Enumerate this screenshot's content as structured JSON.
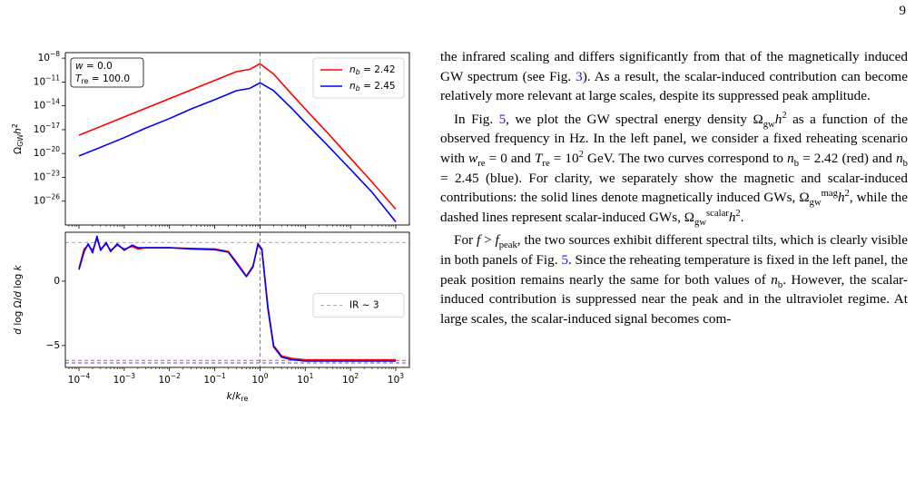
{
  "page_number": "9",
  "chart_data": [
    {
      "type": "line",
      "xlog": true,
      "ylog": true,
      "xlim": [
        5e-05,
        2000
      ],
      "ylim": [
        1e-29,
        5e-08
      ],
      "xticks": [
        0.0001,
        0.001,
        0.01,
        0.1,
        1,
        10,
        100,
        1000
      ],
      "xtick_labels": false,
      "yticks": [
        {
          "value": 1e-08,
          "label": "10",
          "exponent": "−8"
        },
        {
          "value": 1e-11,
          "label": "10",
          "exponent": "−11"
        },
        {
          "value": 1e-14,
          "label": "10",
          "exponent": "−14"
        },
        {
          "value": 1e-17,
          "label": "10",
          "exponent": "−17"
        },
        {
          "value": 1e-20,
          "label": "10",
          "exponent": "−20"
        },
        {
          "value": 1e-23,
          "label": "10",
          "exponent": "−23"
        },
        {
          "value": 1e-26,
          "label": "10",
          "exponent": "−26"
        }
      ],
      "ylabel": [
        {
          "text": "Ω"
        },
        {
          "text": "GW",
          "style": "sub"
        },
        {
          "text": "h",
          "style": "italic"
        },
        {
          "text": "2",
          "style": "sup"
        }
      ],
      "vline": 1,
      "legend": "upper right",
      "annotation": [
        [
          {
            "text": "w",
            "style": "italic"
          },
          {
            "text": " = 0.0"
          }
        ],
        [
          {
            "text": "T",
            "style": "italic"
          },
          {
            "text": "re",
            "style": "sub"
          },
          {
            "text": " = 100.0"
          }
        ]
      ],
      "x": [
        0.0001,
        0.0003,
        0.001,
        0.003,
        0.01,
        0.03,
        0.1,
        0.3,
        0.6,
        1,
        2,
        5,
        10,
        30,
        100,
        300,
        1000
      ],
      "series": [
        {
          "name": [
            {
              "text": "n",
              "style": "italic"
            },
            {
              "text": "b",
              "style": "sub-italic"
            },
            {
              "text": " = 2.42"
            }
          ],
          "color": "#ff0000",
          "values": [
            2e-18,
            2.5e-17,
            4e-16,
            5e-15,
            8e-14,
            1e-12,
            1.6e-11,
            2e-10,
            4e-10,
            2e-09,
            1e-10,
            3e-13,
            4e-15,
            5e-18,
            2.5e-21,
            2.5e-24,
            1e-27
          ]
        },
        {
          "name": [
            {
              "text": "n",
              "style": "italic"
            },
            {
              "text": "b",
              "style": "sub-italic"
            },
            {
              "text": " = 2.45"
            }
          ],
          "color": "#0000ff",
          "values": [
            5e-21,
            6e-20,
            1e-18,
            1.6e-17,
            2.5e-16,
            4e-15,
            6e-14,
            8e-13,
            1.6e-12,
            8e-12,
            8e-13,
            5e-15,
            8e-17,
            1.3e-19,
            1e-22,
            1.3e-25,
            2.5e-29
          ]
        }
      ]
    },
    {
      "type": "line",
      "xlog": true,
      "ylog": false,
      "xlim": [
        5e-05,
        2000
      ],
      "ylim": [
        -6.7,
        3.8
      ],
      "xticks": [
        {
          "value": 0.0001,
          "label": "10",
          "exponent": "−4"
        },
        {
          "value": 0.001,
          "label": "10",
          "exponent": "−3"
        },
        {
          "value": 0.01,
          "label": "10",
          "exponent": "−2"
        },
        {
          "value": 0.1,
          "label": "10",
          "exponent": "−1"
        },
        {
          "value": 1,
          "label": "10",
          "exponent": "0"
        },
        {
          "value": 10,
          "label": "10",
          "exponent": "1"
        },
        {
          "value": 100,
          "label": "10",
          "exponent": "2"
        },
        {
          "value": 1000,
          "label": "10",
          "exponent": "3"
        }
      ],
      "xtick_labels": true,
      "yticks": [
        {
          "value": -5,
          "label": "−5"
        },
        0
      ],
      "xlabel": [
        {
          "text": "k",
          "style": "italic"
        },
        {
          "text": "/"
        },
        {
          "text": "k",
          "style": "italic"
        },
        {
          "text": "re",
          "style": "sub"
        }
      ],
      "ylabel": [
        {
          "text": "d",
          "style": "italic"
        },
        {
          "text": " log Ω/"
        },
        {
          "text": "d",
          "style": "italic"
        },
        {
          "text": " log "
        },
        {
          "text": "k",
          "style": "italic"
        }
      ],
      "vline": 1,
      "legend": "center right",
      "reference_lines": [
        {
          "value": 3,
          "color": "#aaaaaa",
          "name": "IR ~ 3"
        },
        {
          "value": -6.15,
          "color": "#ff4444"
        },
        {
          "value": -6.35,
          "color": "#4444ff"
        }
      ],
      "x": [
        0.0001,
        0.00013,
        0.00016,
        0.0002,
        0.00025,
        0.0003,
        0.0004,
        0.0005,
        0.0007,
        0.001,
        0.0015,
        0.002,
        0.003,
        0.01,
        0.03,
        0.1,
        0.2,
        0.3,
        0.5,
        0.7,
        0.9,
        1.1,
        1.5,
        2,
        3,
        5,
        10,
        100,
        1000
      ],
      "series": [
        {
          "color": "#ff0000",
          "values": [
            1.0,
            2.5,
            2.8,
            2.4,
            3.3,
            2.5,
            2.9,
            2.4,
            2.8,
            2.5,
            2.7,
            2.5,
            2.6,
            2.6,
            2.55,
            2.5,
            2.3,
            1.5,
            0.4,
            1.2,
            2.8,
            2.4,
            -2.0,
            -5.0,
            -5.8,
            -6.0,
            -6.1,
            -6.1,
            -6.1
          ]
        },
        {
          "color": "#0000ff",
          "values": [
            0.9,
            2.3,
            2.9,
            2.2,
            3.5,
            2.4,
            3.0,
            2.3,
            2.9,
            2.4,
            2.8,
            2.6,
            2.6,
            2.6,
            2.5,
            2.45,
            2.25,
            1.4,
            0.35,
            1.1,
            2.9,
            2.5,
            -2.2,
            -5.1,
            -5.9,
            -6.1,
            -6.2,
            -6.2,
            -6.2
          ]
        }
      ]
    }
  ],
  "paragraphs": [
    [
      {
        "text": "the infrared scaling and differs significantly from that of the magnetically induced GW spectrum (see Fig. "
      },
      {
        "text": "3",
        "style": "link"
      },
      {
        "text": "). As a result, the scalar-induced contribution can become relatively more relevant at large scales, despite its suppressed peak amplitude."
      }
    ],
    [
      {
        "text": "In Fig. "
      },
      {
        "text": "5",
        "style": "link"
      },
      {
        "text": ", we plot the GW spectral energy density "
      },
      {
        "text": "Ω"
      },
      {
        "text": "gw",
        "style": "sub"
      },
      {
        "text": "h",
        "style": "italic"
      },
      {
        "text": "2",
        "style": "sup"
      },
      {
        "text": " as a function of the observed frequency in Hz. In the left panel, we consider a fixed reheating scenario with "
      },
      {
        "text": "w",
        "style": "italic"
      },
      {
        "text": "re",
        "style": "sub"
      },
      {
        "text": " = 0 and "
      },
      {
        "text": "T",
        "style": "italic"
      },
      {
        "text": "re",
        "style": "sub"
      },
      {
        "text": " = 10"
      },
      {
        "text": "2",
        "style": "sup"
      },
      {
        "text": " GeV. The two curves correspond to "
      },
      {
        "text": "n",
        "style": "italic"
      },
      {
        "text": "b",
        "style": "sub"
      },
      {
        "text": " = 2.42 (red) and "
      },
      {
        "text": "n",
        "style": "italic"
      },
      {
        "text": "b",
        "style": "sub"
      },
      {
        "text": " = 2.45 (blue). For clarity, we separately show the magnetic and scalar-induced contributions: the solid lines denote magnetically induced GWs, "
      },
      {
        "text": "Ω"
      },
      {
        "text": "gw",
        "style": "sub"
      },
      {
        "text": "mag",
        "style": "sup"
      },
      {
        "text": "h",
        "style": "italic"
      },
      {
        "text": "2",
        "style": "sup"
      },
      {
        "text": ", while the dashed lines represent scalar-induced GWs, "
      },
      {
        "text": "Ω"
      },
      {
        "text": "gw",
        "style": "sub"
      },
      {
        "text": "scalar",
        "style": "sup"
      },
      {
        "text": "h",
        "style": "italic"
      },
      {
        "text": "2",
        "style": "sup"
      },
      {
        "text": "."
      }
    ],
    [
      {
        "text": "For "
      },
      {
        "text": "f",
        "style": "italic"
      },
      {
        "text": " > "
      },
      {
        "text": "f",
        "style": "italic"
      },
      {
        "text": "peak",
        "style": "sub"
      },
      {
        "text": ", the two sources exhibit different spectral tilts, which is clearly visible in both panels of Fig. "
      },
      {
        "text": "5",
        "style": "link"
      },
      {
        "text": ". Since the reheating temperature is fixed in the left panel, the peak position remains nearly the same for both values of "
      },
      {
        "text": "n",
        "style": "italic"
      },
      {
        "text": "b",
        "style": "sub"
      },
      {
        "text": ". However, the scalar-induced contribution is suppressed near the peak and in the ultraviolet regime. At large scales, the scalar-induced signal becomes com-"
      }
    ]
  ]
}
